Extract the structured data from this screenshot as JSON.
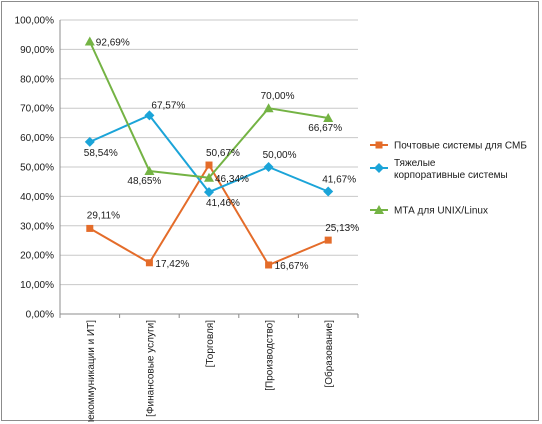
{
  "chart_data": {
    "type": "line",
    "categories": [
      "[Телекоммуникации и ИТ]",
      "[Финансовые услуги]",
      "[Торговля]",
      "[Производство]",
      "[Образование]"
    ],
    "ylim": [
      0,
      100
    ],
    "yticks": [
      "0,00%",
      "10,00%",
      "20,00%",
      "30,00%",
      "40,00%",
      "50,00%",
      "60,00%",
      "70,00%",
      "80,00%",
      "90,00%",
      "100,00%"
    ],
    "grid": true,
    "legend_position": "right",
    "series": [
      {
        "name": "Почтовые системы для СМБ",
        "color": "#e46c2a",
        "marker": "square",
        "values": [
          29.11,
          17.42,
          50.67,
          16.67,
          25.13
        ],
        "labels": [
          "29,11%",
          "17,42%",
          "50,67%",
          "16,67%",
          "25,13%"
        ]
      },
      {
        "name": "Тяжелые корпоративные системы",
        "name_lines": [
          "Тяжелые",
          "корпоративные системы"
        ],
        "color": "#1ba4d8",
        "marker": "diamond",
        "values": [
          58.54,
          67.57,
          41.46,
          50.0,
          41.67
        ],
        "labels": [
          "58,54%",
          "67,57%",
          "41,46%",
          "50,00%",
          "41,67%"
        ]
      },
      {
        "name": "МТА для UNIX/Linux",
        "color": "#74b344",
        "marker": "triangle",
        "values": [
          92.69,
          48.65,
          46.34,
          70.0,
          66.67
        ],
        "labels": [
          "92,69%",
          "48,65%",
          "46,34%",
          "70,00%",
          "66,67%"
        ]
      }
    ]
  }
}
